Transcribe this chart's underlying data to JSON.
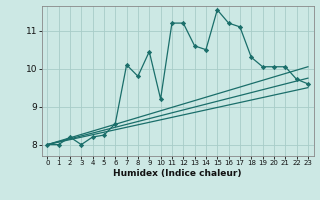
{
  "xlabel": "Humidex (Indice chaleur)",
  "ylabel": "",
  "background_color": "#cce8e4",
  "grid_color": "#a8ccc8",
  "line_color": "#1a6e6a",
  "xlim": [
    -0.5,
    23.5
  ],
  "ylim": [
    7.7,
    11.65
  ],
  "yticks": [
    8,
    9,
    10,
    11
  ],
  "xticks": [
    0,
    1,
    2,
    3,
    4,
    5,
    6,
    7,
    8,
    9,
    10,
    11,
    12,
    13,
    14,
    15,
    16,
    17,
    18,
    19,
    20,
    21,
    22,
    23
  ],
  "main_x": [
    0,
    1,
    2,
    3,
    4,
    5,
    6,
    7,
    8,
    9,
    10,
    11,
    12,
    13,
    14,
    15,
    16,
    17,
    18,
    19,
    20,
    21,
    22,
    23
  ],
  "main_y": [
    8.0,
    8.0,
    8.2,
    8.0,
    8.2,
    8.25,
    8.55,
    10.1,
    9.8,
    10.45,
    9.2,
    11.2,
    11.2,
    10.6,
    10.5,
    11.55,
    11.2,
    11.1,
    10.3,
    10.05,
    10.05,
    10.05,
    9.72,
    9.6
  ],
  "line1_x": [
    0,
    23
  ],
  "line1_y": [
    8.0,
    10.05
  ],
  "line2_x": [
    0,
    23
  ],
  "line2_y": [
    8.0,
    9.75
  ],
  "line3_x": [
    0,
    23
  ],
  "line3_y": [
    8.0,
    9.5
  ]
}
